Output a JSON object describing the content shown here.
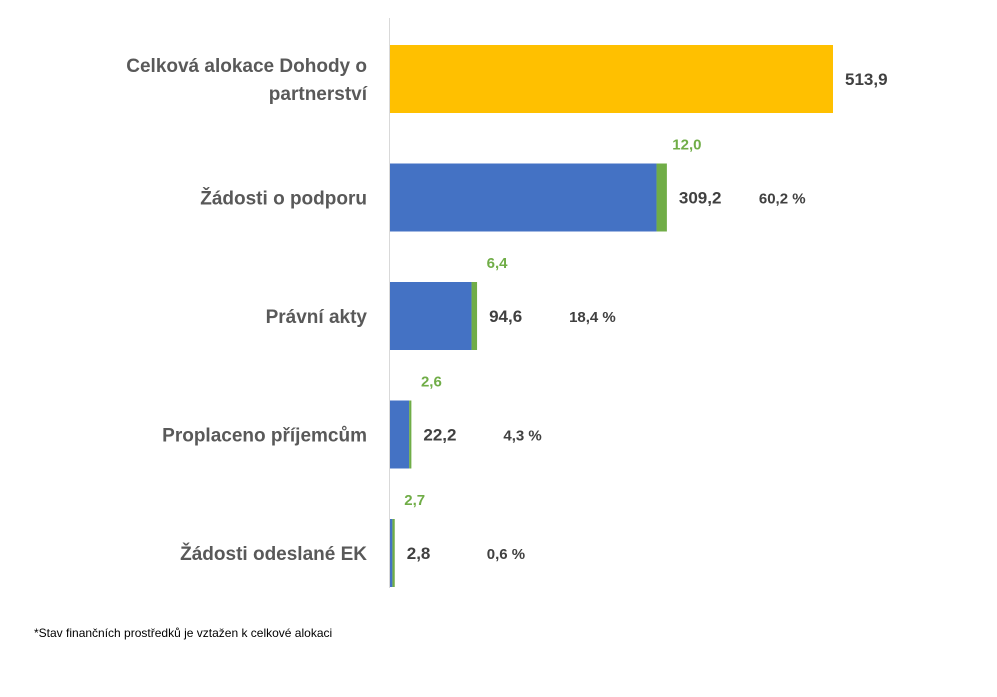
{
  "chart_data": {
    "type": "bar",
    "orientation": "horizontal",
    "stacked": true,
    "categories": [
      [
        "Celková alokace Dohody o",
        "partnerství"
      ],
      [
        "Žádosti o podporu"
      ],
      [
        "Právní akty"
      ],
      [
        "Proplaceno příjemcům"
      ],
      [
        "Žádosti odeslané EK"
      ]
    ],
    "values": [
      513.9,
      309.2,
      94.6,
      22.2,
      2.8
    ],
    "value_labels": [
      "513,9",
      "309,2",
      "94,6",
      "22,2",
      "2,8"
    ],
    "secondary_values": [
      null,
      12.0,
      6.4,
      2.6,
      2.7
    ],
    "secondary_labels": [
      "",
      "12,0",
      "6,4",
      "2,6",
      "2,7"
    ],
    "percent_labels": [
      "",
      "60,2 %",
      "18,4 %",
      "4,3 %",
      "0,6 %"
    ],
    "bar_colors": [
      "#FFC000",
      "#4472C4",
      "#4472C4",
      "#4472C4",
      "#4472C4"
    ],
    "secondary_color": "#70AD47",
    "xlim": [
      0,
      513.9
    ],
    "grid": false,
    "legend": "none"
  },
  "footnote": "*Stav finančních prostředků je vztažen k celkové alokaci"
}
